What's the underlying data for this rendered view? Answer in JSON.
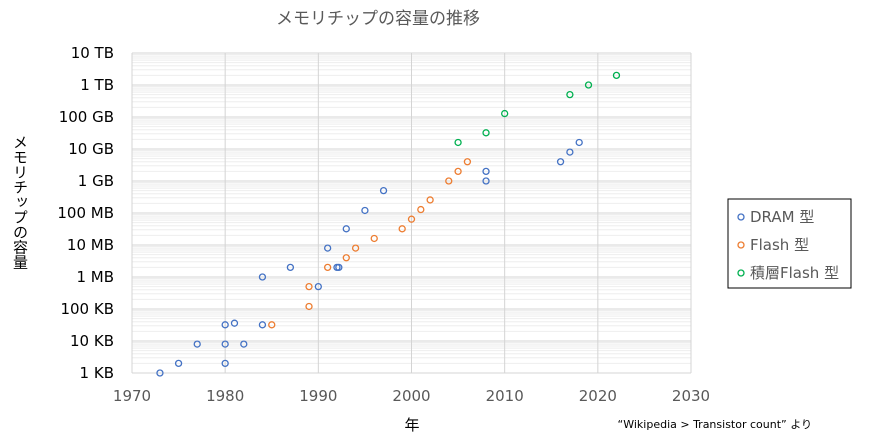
{
  "chart_data": {
    "type": "scatter",
    "title": "メモリチップの容量の推移",
    "xlabel": "年",
    "ylabel": "メモリチップの容量",
    "xlim": [
      1970,
      2030
    ],
    "xticks": [
      1970,
      1980,
      1990,
      2000,
      2010,
      2020,
      2030
    ],
    "ylim_log10_bytes": [
      3,
      13
    ],
    "yscale": "log",
    "ytick_labels": [
      "1 KB",
      "10 KB",
      "100 KB",
      "1 MB",
      "10 MB",
      "100 MB",
      "1 GB",
      "10 GB",
      "100 GB",
      "1 TB",
      "10 TB"
    ],
    "grid": true,
    "legend": "right",
    "source_note": "“Wikipedia >  Transistor count” より",
    "series": [
      {
        "name": "DRAM 型",
        "color": "#4472C4",
        "points": [
          {
            "x": 1973,
            "y": 1
          },
          {
            "x": 1975,
            "y": 2
          },
          {
            "x": 1977,
            "y": 8
          },
          {
            "x": 1980,
            "y": 2
          },
          {
            "x": 1980,
            "y": 8
          },
          {
            "x": 1980,
            "y": 32
          },
          {
            "x": 1981,
            "y": 36
          },
          {
            "x": 1982,
            "y": 8
          },
          {
            "x": 1984,
            "y": 32
          },
          {
            "x": 1984,
            "y": 1000
          },
          {
            "x": 1987,
            "y": 2000
          },
          {
            "x": 1990,
            "y": 500
          },
          {
            "x": 1991,
            "y": 8000
          },
          {
            "x": 1992,
            "y": 2000
          },
          {
            "x": 1992.2,
            "y": 2000
          },
          {
            "x": 1993,
            "y": 32000
          },
          {
            "x": 1995,
            "y": 120000
          },
          {
            "x": 1997,
            "y": 500000
          },
          {
            "x": 2008,
            "y": 1000000
          },
          {
            "x": 2008,
            "y": 2000000
          },
          {
            "x": 2016,
            "y": 4000000
          },
          {
            "x": 2017,
            "y": 8000000
          },
          {
            "x": 2018,
            "y": 16000000
          }
        ]
      },
      {
        "name": "Flash 型",
        "color": "#ED7D31",
        "points": [
          {
            "x": 1985,
            "y": 32
          },
          {
            "x": 1989,
            "y": 120
          },
          {
            "x": 1989,
            "y": 500
          },
          {
            "x": 1991,
            "y": 2000
          },
          {
            "x": 1993,
            "y": 4000
          },
          {
            "x": 1994,
            "y": 8000
          },
          {
            "x": 1996,
            "y": 16000
          },
          {
            "x": 1999,
            "y": 32000
          },
          {
            "x": 2000,
            "y": 64000
          },
          {
            "x": 2001,
            "y": 128000
          },
          {
            "x": 2002,
            "y": 256000
          },
          {
            "x": 2004,
            "y": 1000000
          },
          {
            "x": 2005,
            "y": 2000000
          },
          {
            "x": 2006,
            "y": 4000000
          }
        ]
      },
      {
        "name": "積層Flash 型",
        "color": "#00B050",
        "points": [
          {
            "x": 2005,
            "y": 16000000
          },
          {
            "x": 2008,
            "y": 32000000
          },
          {
            "x": 2010,
            "y": 128000000
          },
          {
            "x": 2017,
            "y": 500000000
          },
          {
            "x": 2019,
            "y": 1000000000
          },
          {
            "x": 2022,
            "y": 2000000000
          }
        ]
      }
    ]
  }
}
